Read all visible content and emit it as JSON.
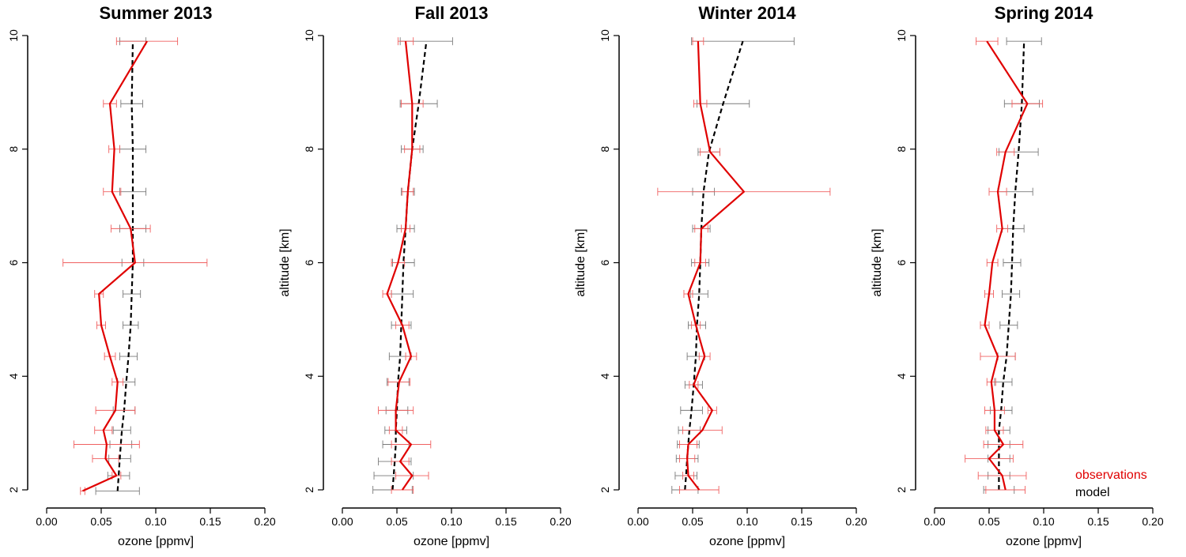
{
  "chart_data": [
    {
      "type": "line",
      "title": "Summer 2013",
      "xlabel": "ozone [ppmv]",
      "ylabel": "altitude [km]",
      "xlim": [
        0,
        0.2
      ],
      "ylim": [
        2,
        10
      ],
      "xticks": [
        "0.00",
        "0.05",
        "0.10",
        "0.15",
        "0.20"
      ],
      "yticks": [
        "2",
        "4",
        "6",
        "8",
        "10"
      ],
      "series": [
        {
          "name": "observations",
          "color": "#e00000",
          "style": "solid",
          "y": [
            1.98,
            2.25,
            2.55,
            2.8,
            3.05,
            3.4,
            3.9,
            4.35,
            4.9,
            5.45,
            6.0,
            6.6,
            7.25,
            8.0,
            8.8,
            9.9
          ],
          "x": [
            0.033,
            0.064,
            0.054,
            0.055,
            0.052,
            0.063,
            0.065,
            0.058,
            0.05,
            0.048,
            0.081,
            0.077,
            0.06,
            0.062,
            0.058,
            0.092
          ],
          "xerr": [
            0.002,
            0.004,
            0.012,
            0.03,
            0.008,
            0.018,
            0.005,
            0.005,
            0.004,
            0.004,
            0.066,
            0.018,
            0.008,
            0.005,
            0.006,
            0.028
          ]
        },
        {
          "name": "model",
          "color": "#000000",
          "style": "dashed",
          "y": [
            1.98,
            2.25,
            2.55,
            2.8,
            3.05,
            3.4,
            3.9,
            4.35,
            4.9,
            5.45,
            6.0,
            6.6,
            7.25,
            8.0,
            8.8,
            9.9
          ],
          "x": [
            0.065,
            0.066,
            0.067,
            0.068,
            0.069,
            0.071,
            0.073,
            0.075,
            0.077,
            0.078,
            0.079,
            0.079,
            0.079,
            0.079,
            0.078,
            0.079
          ],
          "xerr": [
            0.02,
            0.01,
            0.01,
            0.01,
            0.008,
            0.01,
            0.008,
            0.008,
            0.007,
            0.008,
            0.01,
            0.012,
            0.012,
            0.012,
            0.01,
            0.012
          ]
        }
      ]
    },
    {
      "type": "line",
      "title": "Fall 2013",
      "xlabel": "ozone [ppmv]",
      "ylabel": "altitude [km]",
      "xlim": [
        0,
        0.2
      ],
      "ylim": [
        2,
        10
      ],
      "xticks": [
        "0.00",
        "0.05",
        "0.10",
        "0.15",
        "0.20"
      ],
      "yticks": [
        "2",
        "4",
        "6",
        "8",
        "10"
      ],
      "series": [
        {
          "name": "observations",
          "color": "#e00000",
          "style": "solid",
          "y": [
            2.0,
            2.25,
            2.5,
            2.8,
            3.05,
            3.4,
            3.9,
            4.35,
            4.9,
            5.45,
            6.0,
            6.6,
            7.25,
            8.0,
            8.8,
            9.9
          ],
          "x": [
            0.055,
            0.064,
            0.053,
            0.063,
            0.049,
            0.049,
            0.052,
            0.063,
            0.055,
            0.041,
            0.051,
            0.058,
            0.06,
            0.064,
            0.064,
            0.058
          ],
          "xerr": [
            0.01,
            0.015,
            0.008,
            0.018,
            0.006,
            0.016,
            0.01,
            0.005,
            0.006,
            0.004,
            0.006,
            0.004,
            0.005,
            0.007,
            0.01,
            0.007
          ]
        },
        {
          "name": "model",
          "color": "#000000",
          "style": "dashed",
          "y": [
            2.0,
            2.25,
            2.5,
            2.8,
            3.05,
            3.4,
            3.9,
            4.35,
            4.9,
            5.45,
            6.0,
            6.6,
            7.25,
            8.0,
            8.8,
            9.9
          ],
          "x": [
            0.046,
            0.047,
            0.048,
            0.049,
            0.049,
            0.05,
            0.051,
            0.053,
            0.054,
            0.055,
            0.056,
            0.058,
            0.06,
            0.064,
            0.07,
            0.077
          ],
          "xerr": [
            0.018,
            0.018,
            0.015,
            0.012,
            0.01,
            0.01,
            0.01,
            0.01,
            0.009,
            0.01,
            0.01,
            0.008,
            0.006,
            0.01,
            0.017,
            0.024
          ]
        }
      ]
    },
    {
      "type": "line",
      "title": "Winter 2014",
      "xlabel": "ozone [ppmv]",
      "ylabel": "altitude [km]",
      "xlim": [
        0,
        0.2
      ],
      "ylim": [
        2,
        10
      ],
      "xticks": [
        "0.00",
        "0.05",
        "0.10",
        "0.15",
        "0.20"
      ],
      "yticks": [
        "2",
        "4",
        "6",
        "8",
        "10"
      ],
      "series": [
        {
          "name": "observations",
          "color": "#e00000",
          "style": "solid",
          "y": [
            2.0,
            2.25,
            2.55,
            2.8,
            3.05,
            3.4,
            3.85,
            4.35,
            4.9,
            5.45,
            6.0,
            6.6,
            7.25,
            7.95,
            8.8,
            9.9
          ],
          "x": [
            0.056,
            0.046,
            0.045,
            0.046,
            0.059,
            0.068,
            0.051,
            0.061,
            0.053,
            0.046,
            0.057,
            0.058,
            0.097,
            0.066,
            0.057,
            0.055
          ],
          "xerr": [
            0.018,
            0.005,
            0.007,
            0.008,
            0.018,
            0.004,
            0.004,
            0.005,
            0.004,
            0.004,
            0.005,
            0.006,
            0.079,
            0.009,
            0.006,
            0.005
          ]
        },
        {
          "name": "model",
          "color": "#000000",
          "style": "dashed",
          "y": [
            2.0,
            2.25,
            2.55,
            2.8,
            3.05,
            3.4,
            3.85,
            4.35,
            4.9,
            5.45,
            6.0,
            6.6,
            7.25,
            7.95,
            8.8,
            9.9
          ],
          "x": [
            0.043,
            0.044,
            0.045,
            0.046,
            0.047,
            0.049,
            0.051,
            0.053,
            0.054,
            0.056,
            0.057,
            0.058,
            0.06,
            0.065,
            0.078,
            0.096
          ],
          "xerr": [
            0.012,
            0.01,
            0.01,
            0.01,
            0.01,
            0.01,
            0.008,
            0.008,
            0.008,
            0.008,
            0.008,
            0.008,
            0.01,
            0.01,
            0.024,
            0.047
          ]
        }
      ]
    },
    {
      "type": "line",
      "title": "Spring 2014",
      "xlabel": "ozone [ppmv]",
      "ylabel": "altitude [km]",
      "xlim": [
        0,
        0.2
      ],
      "ylim": [
        2,
        10
      ],
      "xticks": [
        "0.00",
        "0.05",
        "0.10",
        "0.15",
        "0.20"
      ],
      "yticks": [
        "2",
        "4",
        "6",
        "8",
        "10"
      ],
      "legend": {
        "position": "bottom-right",
        "entries": [
          "observations",
          "model"
        ]
      },
      "series": [
        {
          "name": "observations",
          "color": "#e00000",
          "style": "solid",
          "y": [
            2.0,
            2.25,
            2.55,
            2.8,
            3.05,
            3.4,
            3.9,
            4.35,
            4.9,
            5.45,
            6.0,
            6.6,
            7.25,
            7.95,
            8.8,
            9.9
          ],
          "x": [
            0.065,
            0.062,
            0.05,
            0.063,
            0.055,
            0.055,
            0.052,
            0.058,
            0.046,
            0.05,
            0.053,
            0.062,
            0.058,
            0.065,
            0.085,
            0.048
          ],
          "xerr": [
            0.018,
            0.022,
            0.022,
            0.018,
            0.008,
            0.009,
            0.004,
            0.016,
            0.004,
            0.004,
            0.005,
            0.005,
            0.008,
            0.008,
            0.014,
            0.01
          ]
        },
        {
          "name": "model",
          "color": "#000000",
          "style": "dashed",
          "y": [
            2.0,
            2.25,
            2.55,
            2.8,
            3.05,
            3.4,
            3.9,
            4.35,
            4.9,
            5.45,
            6.0,
            6.6,
            7.25,
            7.95,
            8.8,
            9.9
          ],
          "x": [
            0.059,
            0.059,
            0.059,
            0.059,
            0.059,
            0.061,
            0.063,
            0.066,
            0.068,
            0.07,
            0.071,
            0.072,
            0.074,
            0.077,
            0.08,
            0.082
          ],
          "xerr": [
            0.014,
            0.01,
            0.01,
            0.01,
            0.01,
            0.01,
            0.008,
            0.008,
            0.008,
            0.008,
            0.008,
            0.01,
            0.016,
            0.018,
            0.016,
            0.016
          ]
        }
      ]
    }
  ]
}
